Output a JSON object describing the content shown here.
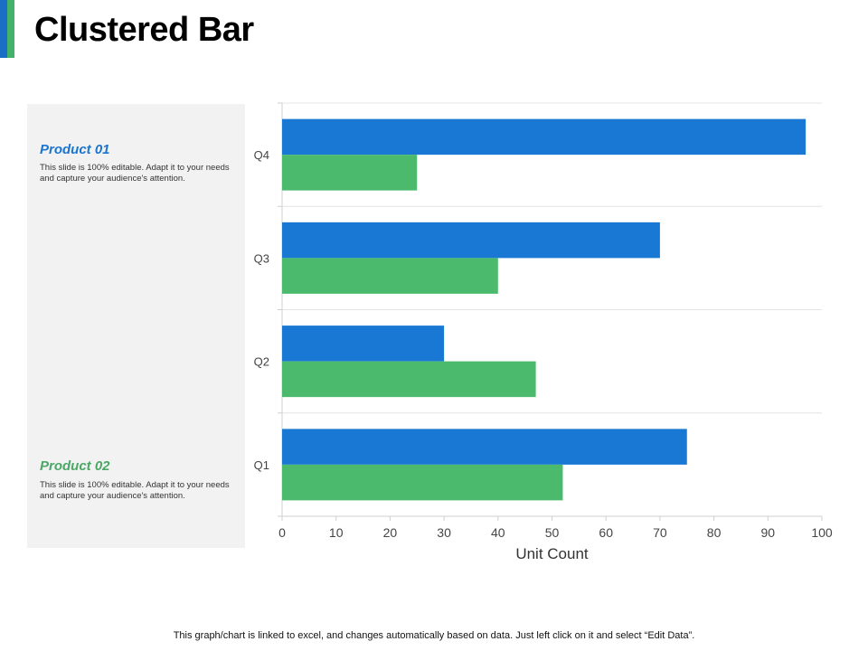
{
  "slide": {
    "title": "Clustered Bar",
    "footer": "This graph/chart is linked to excel, and changes automatically based on data. Just left click on it and select “Edit Data”.",
    "accent_colors": [
      "#1a6fc4",
      "#45b26b"
    ]
  },
  "legend_panel": {
    "items": [
      {
        "title": "Product 01",
        "description": "This slide is 100% editable.  Adapt it to your needs and capture your audience's attention.",
        "color": "#1a75cf"
      },
      {
        "title": "Product 02",
        "description": "This slide is 100% editable.  Adapt it to your needs and capture your audience's attention.",
        "color": "#4aa865"
      }
    ]
  },
  "chart_data": {
    "type": "bar",
    "orientation": "horizontal",
    "title": "",
    "xlabel": "Unit Count",
    "ylabel": "",
    "xlim": [
      0,
      100
    ],
    "xticks": [
      0,
      10,
      20,
      30,
      40,
      50,
      60,
      70,
      80,
      90,
      100
    ],
    "categories": [
      "Q1",
      "Q2",
      "Q3",
      "Q4"
    ],
    "series": [
      {
        "name": "Product 01",
        "values": [
          75,
          30,
          70,
          97
        ],
        "color": "#1878d4"
      },
      {
        "name": "Product 02",
        "values": [
          52,
          47,
          40,
          25
        ],
        "color": "#4cba6c"
      }
    ],
    "grid": true
  }
}
